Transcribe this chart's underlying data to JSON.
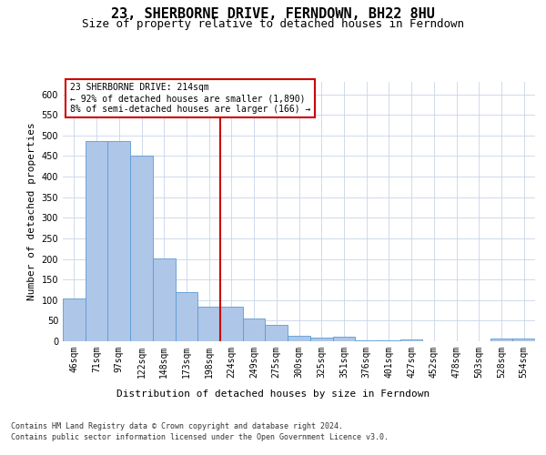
{
  "title": "23, SHERBORNE DRIVE, FERNDOWN, BH22 8HU",
  "subtitle": "Size of property relative to detached houses in Ferndown",
  "xlabel": "Distribution of detached houses by size in Ferndown",
  "ylabel": "Number of detached properties",
  "bar_labels": [
    "46sqm",
    "71sqm",
    "97sqm",
    "122sqm",
    "148sqm",
    "173sqm",
    "198sqm",
    "224sqm",
    "249sqm",
    "275sqm",
    "300sqm",
    "325sqm",
    "351sqm",
    "376sqm",
    "401sqm",
    "427sqm",
    "452sqm",
    "478sqm",
    "503sqm",
    "528sqm",
    "554sqm"
  ],
  "bar_values": [
    105,
    487,
    487,
    452,
    202,
    119,
    83,
    83,
    55,
    40,
    14,
    9,
    10,
    3,
    2,
    4,
    1,
    0,
    0,
    6,
    6
  ],
  "bar_color": "#aec6e8",
  "bar_edge_color": "#5b9bd5",
  "reference_line_x": 7,
  "annotation_title": "23 SHERBORNE DRIVE: 214sqm",
  "annotation_line1": "← 92% of detached houses are smaller (1,890)",
  "annotation_line2": "8% of semi-detached houses are larger (166) →",
  "annotation_box_color": "#ffffff",
  "annotation_box_edge_color": "#cc0000",
  "vline_color": "#cc0000",
  "footer_line1": "Contains HM Land Registry data © Crown copyright and database right 2024.",
  "footer_line2": "Contains public sector information licensed under the Open Government Licence v3.0.",
  "ylim": [
    0,
    630
  ],
  "yticks": [
    0,
    50,
    100,
    150,
    200,
    250,
    300,
    350,
    400,
    450,
    500,
    550,
    600
  ],
  "bg_color": "#ffffff",
  "grid_color": "#c8d4e8",
  "title_fontsize": 11,
  "subtitle_fontsize": 9,
  "axis_label_fontsize": 8,
  "tick_fontsize": 7,
  "footer_fontsize": 6,
  "annotation_fontsize": 7
}
